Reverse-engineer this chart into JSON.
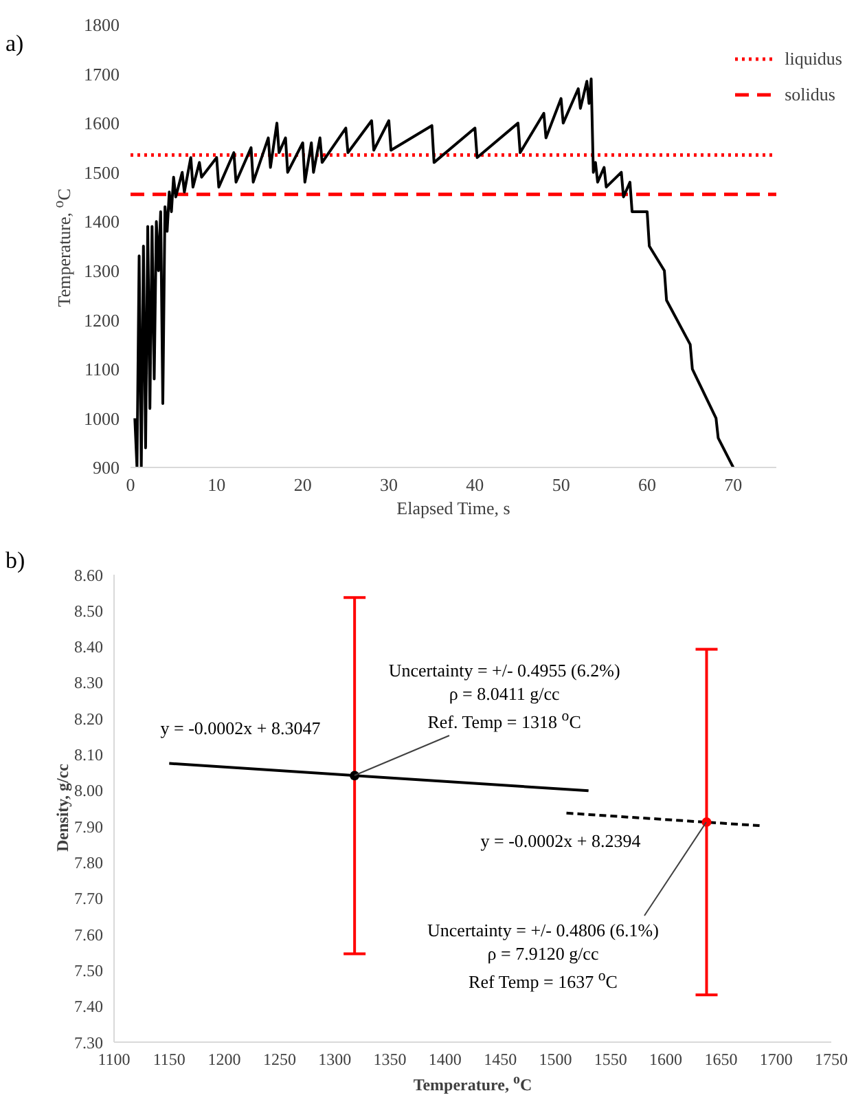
{
  "chart_data": [
    {
      "type": "line",
      "xlabel": "Elapsed Time, s",
      "ylabel": "Temperature, $^{o}$C",
      "annotations": [
        "a)"
      ],
      "x": [
        0.5,
        0.75,
        1,
        1.25,
        1.5,
        1.75,
        2,
        2.25,
        2.5,
        2.75,
        3,
        3.25,
        3.5,
        3.75,
        4,
        4.25,
        4.5,
        4.75,
        5,
        5.25,
        6,
        6.25,
        7,
        7.25,
        8,
        8.25,
        10,
        10.25,
        12,
        12.25,
        14,
        14.25,
        16,
        16.25,
        17,
        17.25,
        18,
        18.25,
        20,
        20.25,
        21,
        21.25,
        22,
        22.25,
        25,
        25.25,
        28,
        28.25,
        30,
        30.25,
        35,
        35.25,
        40,
        40.25,
        45,
        45.25,
        48,
        48.25,
        50,
        50.25,
        52,
        52.25,
        53,
        53.25,
        53.5,
        53.75,
        54,
        54.25,
        55,
        55.25,
        57,
        57.25,
        58,
        58.25,
        60,
        60.25,
        62,
        62.25,
        65,
        65.25,
        68,
        68.25,
        70
      ],
      "series": [
        {
          "color": "#000000",
          "values": [
            1000,
            900,
            1330,
            900,
            1350,
            940,
            1390,
            1020,
            1390,
            1080,
            1400,
            1300,
            1420,
            1030,
            1430,
            1380,
            1460,
            1420,
            1490,
            1450,
            1500,
            1460,
            1530,
            1470,
            1520,
            1490,
            1530,
            1470,
            1540,
            1480,
            1550,
            1480,
            1570,
            1510,
            1600,
            1540,
            1570,
            1500,
            1560,
            1480,
            1560,
            1500,
            1570,
            1520,
            1590,
            1540,
            1605,
            1545,
            1605,
            1545,
            1595,
            1520,
            1590,
            1530,
            1600,
            1540,
            1620,
            1570,
            1650,
            1600,
            1670,
            1630,
            1685,
            1640,
            1690,
            1500,
            1520,
            1480,
            1510,
            1470,
            1500,
            1450,
            1480,
            1420,
            1420,
            1350,
            1300,
            1240,
            1150,
            1100,
            1000,
            960,
            900
          ]
        }
      ],
      "ref_lines": [
        {
          "axis": "y",
          "value": 1535,
          "label": "liquidus",
          "color": "#ff0000",
          "line_style": "dotted"
        },
        {
          "axis": "y",
          "value": 1455,
          "label": "solidus",
          "color": "#ff0000",
          "line_style": "dashed"
        }
      ],
      "xlim": [
        0,
        75
      ],
      "xticks": [
        0,
        10,
        20,
        30,
        40,
        50,
        60,
        70
      ],
      "ylim": [
        900,
        1800
      ],
      "yticks": [
        900,
        1000,
        1100,
        1200,
        1300,
        1400,
        1500,
        1600,
        1700,
        1800
      ],
      "grid": false,
      "legend": "top right"
    },
    {
      "type": "scatter",
      "xlabel": "Temperature, $^{o}$C",
      "ylabel": "Density, g/cc",
      "annotations": [
        "b)",
        {
          "text": "Uncertainty = +/- 0.4955 (6.2%)\nρ = 8.0411 g/cc\nRef. Temp = 1318 $^{o}$C",
          "x": 1318,
          "y": 8.0411
        },
        {
          "text": "Uncertainty = +/- 0.4806 (6.1%)\nρ = 7.9120 g/cc\nRef Temp = 1637 $^{o}$C",
          "x": 1637,
          "y": 7.912
        },
        "y = -0.0002x + 8.3047",
        "y = -0.0002x + 8.2394"
      ],
      "series": [
        {
          "x": [
            1318,
            1637
          ],
          "values": [
            8.0411,
            7.912
          ],
          "errors": [
            0.4955,
            0.4806
          ],
          "color": "#ff0000",
          "colors": [
            "#000000",
            "#ff0000"
          ],
          "marker": "circle"
        },
        {
          "type": "line",
          "x": [
            1150,
            1530
          ],
          "values": [
            8.075,
            7.999
          ],
          "color": "#000000",
          "line_style": "solid"
        },
        {
          "type": "line",
          "x": [
            1510,
            1685
          ],
          "values": [
            7.937,
            7.902
          ],
          "color": "#000000",
          "line_style": "dashed"
        }
      ],
      "xlim": [
        1100,
        1750
      ],
      "xticks": [
        1100,
        1150,
        1200,
        1250,
        1300,
        1350,
        1400,
        1450,
        1500,
        1550,
        1600,
        1650,
        1700,
        1750
      ],
      "ylim": [
        7.3,
        8.6
      ],
      "yticks": [
        {
          "value": 7.3,
          "label": "7.30"
        },
        {
          "value": 7.4,
          "label": "7.40"
        },
        {
          "value": 7.5,
          "label": "7.50"
        },
        {
          "value": 7.6,
          "label": "7.60"
        },
        {
          "value": 7.7,
          "label": "7.70"
        },
        {
          "value": 7.8,
          "label": "7.80"
        },
        {
          "value": 7.9,
          "label": "7.90"
        },
        {
          "value": 8.0,
          "label": "8.00"
        },
        {
          "value": 8.1,
          "label": "8.10"
        },
        {
          "value": 8.2,
          "label": "8.20"
        },
        {
          "value": 8.3,
          "label": "8.30"
        },
        {
          "value": 8.4,
          "label": "8.40"
        },
        {
          "value": 8.5,
          "label": "8.50"
        },
        {
          "value": 8.6,
          "label": "8.60"
        }
      ],
      "grid": false
    }
  ]
}
